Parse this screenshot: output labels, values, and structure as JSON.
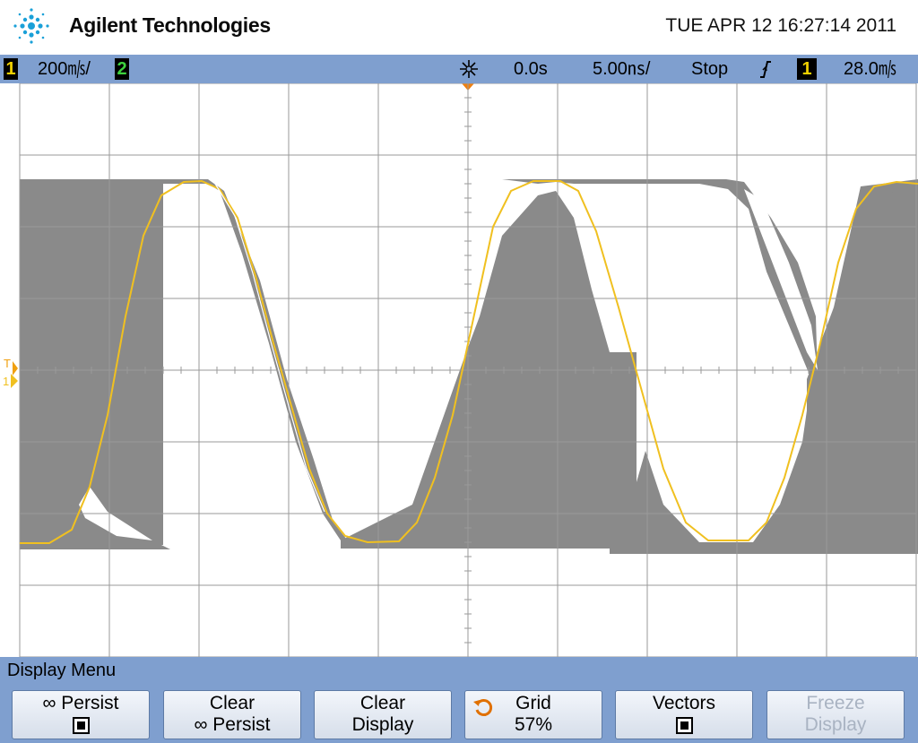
{
  "header": {
    "brand": "Agilent Technologies",
    "datetime": "TUE APR 12 16:27:14 2011",
    "logo_icon": "agilent-spark-icon"
  },
  "status": {
    "ch1_num": "1",
    "ch1_scale": "200㎧/",
    "ch2_num": "2",
    "acq_icon": "acquire-sparkle-icon",
    "delay": "0.0s",
    "timebase": "5.00㎱/",
    "run_state": "Stop",
    "trigger_slope_icon": "rising-edge-icon",
    "trig_ch": "1",
    "trig_level": "28.0㎧"
  },
  "markers": {
    "trigger_marker": "T",
    "ch1_ground": "1"
  },
  "colors": {
    "ch1": "#f0c020",
    "persistence": "#8a8a8a",
    "grid": "#9a9a9a",
    "panel": "#7f9fcf"
  },
  "menu": {
    "title": "Display Menu",
    "softkeys": [
      {
        "line1": "∞ Persist",
        "line2": "",
        "has_checkbox": true,
        "checked": true
      },
      {
        "line1": "Clear",
        "line2": "∞ Persist"
      },
      {
        "line1": "Clear",
        "line2": "Display"
      },
      {
        "line1": "Grid",
        "line2": "57%",
        "icon": "rotary-knob-icon"
      },
      {
        "line1": "Vectors",
        "line2": "",
        "has_checkbox": true,
        "checked": true
      },
      {
        "line1": "Freeze",
        "line2": "Display",
        "disabled": true
      }
    ]
  }
}
